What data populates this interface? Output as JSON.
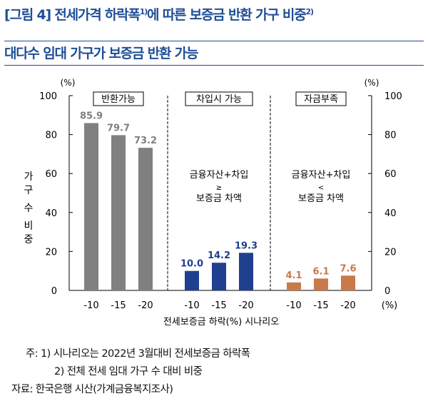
{
  "header": {
    "title_main": "[그림 4] 전세가격 하락폭",
    "title_sup1": "1)",
    "title_mid": "에 따른 보증금 반환 가구 비중",
    "title_sup2": "2)",
    "subtitle": "대다수 임대 가구가 보증금 반환 가능"
  },
  "chart_data": {
    "type": "bar",
    "y_unit_left": "(%)",
    "y_unit_right": "(%)",
    "ylabel": "가구 수 비중",
    "xlabel": "전세보증금 하락(%) 시나리오",
    "x_unit": "(%)",
    "ylim": [
      0,
      100
    ],
    "yticks": [
      0,
      20,
      40,
      60,
      80,
      100
    ],
    "categories": [
      "-10",
      "-15",
      "-20"
    ],
    "panels": [
      {
        "label": "반환가능",
        "color": "#808080",
        "label_color": "#7f7f7f",
        "values": [
          85.9,
          79.7,
          73.2
        ],
        "value_labels": [
          "85.9",
          "79.7",
          "73.2"
        ],
        "annotation": []
      },
      {
        "label": "차입시 가능",
        "color": "#1f3f8f",
        "label_color": "#1f3f8f",
        "values": [
          10.0,
          14.2,
          19.3
        ],
        "value_labels": [
          "10.0",
          "14.2",
          "19.3"
        ],
        "annotation": [
          "금융자산+차입",
          "≥",
          "보증금 차액"
        ]
      },
      {
        "label": "자금부족",
        "color": "#c97a4a",
        "label_color": "#c97a4a",
        "values": [
          4.1,
          6.1,
          7.6
        ],
        "value_labels": [
          "4.1",
          "6.1",
          "7.6"
        ],
        "annotation": [
          "금융자산+차입",
          "<",
          "보증금 차액"
        ]
      }
    ]
  },
  "notes": {
    "line1": "주: 1) 시나리오는 2022년 3월대비 전세보증금 하락폭",
    "line2": "2) 전체 전세 임대 가구 수 대비 비중",
    "line3": "자료: 한국은행 시산(가계금융복지조사)"
  }
}
